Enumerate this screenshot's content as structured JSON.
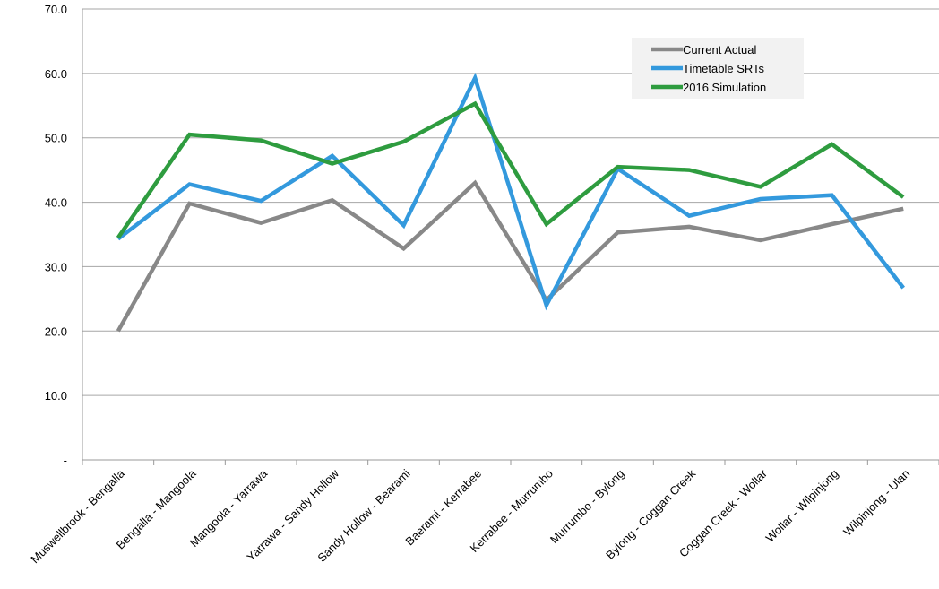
{
  "chart_data": {
    "type": "line",
    "categories": [
      "Muswellbrook - Bengalla",
      "Bengalla - Mangoola",
      "Mangoola - Yarrawa",
      "Yarrawa - Sandy Hollow",
      "Sandy Hollow - Bearami",
      "Baerami - Kerrabee",
      "Kerrabee - Murrumbo",
      "Murrumbo - Bylong",
      "Bylong - Coggan Creek",
      "Coggan Creek - Wollar",
      "Wollar - Wilpinjong",
      "Wilpinjong - Ulan"
    ],
    "series": [
      {
        "name": "Current Actual",
        "color": "#888888",
        "values": [
          20.0,
          39.8,
          36.8,
          40.3,
          32.8,
          43.0,
          24.8,
          35.3,
          36.2,
          34.1,
          36.6,
          39.0
        ]
      },
      {
        "name": "Timetable SRTs",
        "color": "#3399dd",
        "values": [
          34.3,
          42.8,
          40.2,
          47.2,
          36.4,
          59.3,
          24.0,
          45.2,
          37.9,
          40.5,
          41.1,
          26.7
        ]
      },
      {
        "name": "2016 Simulation",
        "color": "#2e9c3f",
        "values": [
          34.5,
          50.5,
          49.6,
          46.0,
          49.4,
          55.3,
          36.6,
          45.5,
          45.0,
          42.4,
          49.0,
          40.8
        ]
      }
    ],
    "yticks": [
      "-",
      "10.0",
      "20.0",
      "30.0",
      "40.0",
      "50.0",
      "60.0",
      "70.0"
    ],
    "ylim": [
      0,
      70
    ],
    "grid": "horizontal",
    "legend_position": "top-right",
    "title": "",
    "xlabel": "",
    "ylabel": ""
  }
}
